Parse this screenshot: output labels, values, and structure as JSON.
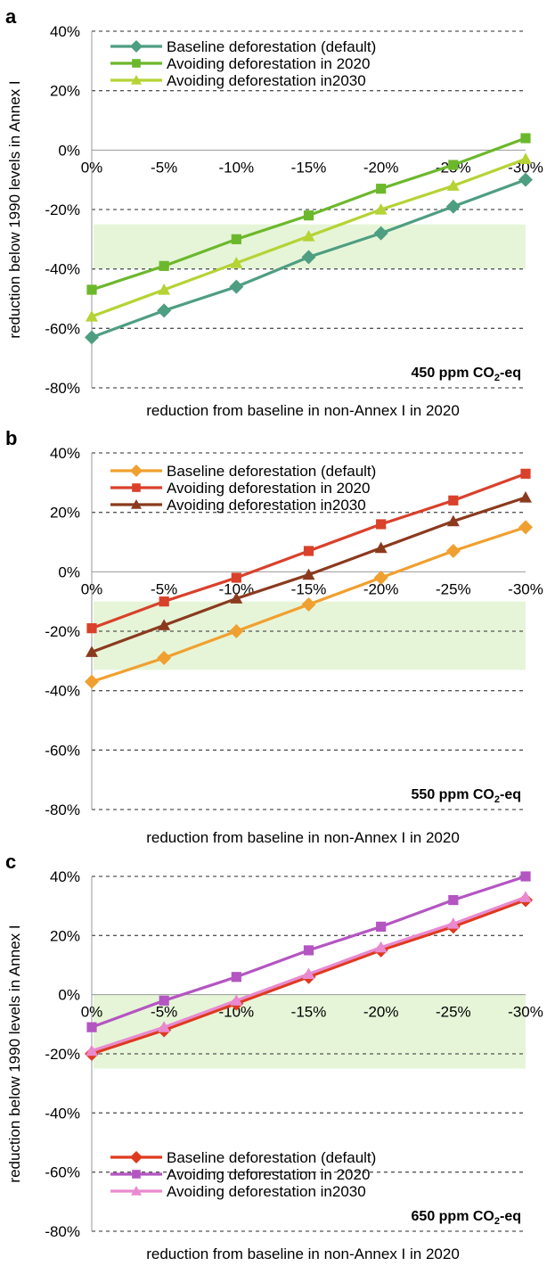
{
  "figure": {
    "y_axis_label": "reduction below 1990 levels in Annex I"
  },
  "chart_data": [
    {
      "panel_label": "a",
      "type": "line",
      "scenario_label": "450 ppm CO",
      "scenario_sub": "2",
      "scenario_suffix": "-eq",
      "xlabel": "reduction from baseline in non-Annex I in 2020",
      "ylabel": "reduction below 1990 levels in Annex I",
      "categories": [
        "0%",
        "-5%",
        "-10%",
        "-15%",
        "-20%",
        "-25%",
        "-30%"
      ],
      "ylim": [
        -80,
        40
      ],
      "yticks": [
        "40%",
        "20%",
        "0%",
        "-20%",
        "-40%",
        "-60%",
        "-80%"
      ],
      "grid": "horizontal dashed",
      "legend": "top-left",
      "band": [
        -40,
        -25
      ],
      "series": [
        {
          "name": "Baseline deforestation (default)",
          "marker": "diamond",
          "color": "#4e9e82",
          "values": [
            -63,
            -54,
            -46,
            -36,
            -28,
            -19,
            -10
          ]
        },
        {
          "name": "Avoiding deforestation in 2020",
          "marker": "square",
          "color": "#6cb82c",
          "values": [
            -47,
            -39,
            -30,
            -22,
            -13,
            -5,
            4
          ]
        },
        {
          "name": "Avoiding deforestation in2030",
          "marker": "triangle",
          "color": "#b5d334",
          "values": [
            -56,
            -47,
            -38,
            -29,
            -20,
            -12,
            -3
          ]
        }
      ]
    },
    {
      "panel_label": "b",
      "type": "line",
      "scenario_label": "550 ppm CO",
      "scenario_sub": "2",
      "scenario_suffix": "-eq",
      "xlabel": "reduction from baseline in non-Annex I in 2020",
      "ylabel": "",
      "categories": [
        "0%",
        "-5%",
        "-10%",
        "-15%",
        "-20%",
        "-25%",
        "-30%"
      ],
      "ylim": [
        -80,
        40
      ],
      "yticks": [
        "40%",
        "20%",
        "0%",
        "-20%",
        "-40%",
        "-60%",
        "-80%"
      ],
      "grid": "horizontal dashed",
      "legend": "top-left",
      "band": [
        -33,
        -10
      ],
      "series": [
        {
          "name": "Baseline deforestation (default)",
          "marker": "diamond",
          "color": "#f0a030",
          "values": [
            -37,
            -29,
            -20,
            -11,
            -2,
            7,
            15
          ]
        },
        {
          "name": "Avoiding deforestation in 2020",
          "marker": "square",
          "color": "#d9412b",
          "values": [
            -19,
            -10,
            -2,
            7,
            16,
            24,
            33
          ]
        },
        {
          "name": "Avoiding deforestation in2030",
          "marker": "triangle",
          "color": "#8b3a1e",
          "values": [
            -27,
            -18,
            -9,
            -1,
            8,
            17,
            25
          ]
        }
      ]
    },
    {
      "panel_label": "c",
      "type": "line",
      "scenario_label": "650 ppm CO",
      "scenario_sub": "2",
      "scenario_suffix": "-eq",
      "xlabel": "reduction from baseline in non-Annex I in 2020",
      "ylabel": "reduction below 1990 levels in Annex I",
      "categories": [
        "0%",
        "-5%",
        "-10%",
        "-15%",
        "-20%",
        "-25%",
        "-30%"
      ],
      "ylim": [
        -80,
        40
      ],
      "yticks": [
        "40%",
        "20%",
        "0%",
        "-20%",
        "-40%",
        "-60%",
        "-80%"
      ],
      "grid": "horizontal dashed",
      "legend": "bottom-left",
      "band": [
        -25,
        0
      ],
      "series": [
        {
          "name": "Baseline deforestation (default)",
          "marker": "diamond",
          "color": "#de3a1f",
          "values": [
            -20,
            -12,
            -3,
            6,
            15,
            23,
            32
          ]
        },
        {
          "name": "Avoiding deforestation in 2020",
          "marker": "square",
          "color": "#b455c2",
          "values": [
            -11,
            -2,
            6,
            15,
            23,
            32,
            40
          ]
        },
        {
          "name": "Avoiding deforestation in2030",
          "marker": "triangle",
          "color": "#e98ad0",
          "values": [
            -19,
            -11,
            -2,
            7,
            16,
            24,
            33
          ]
        }
      ]
    }
  ]
}
